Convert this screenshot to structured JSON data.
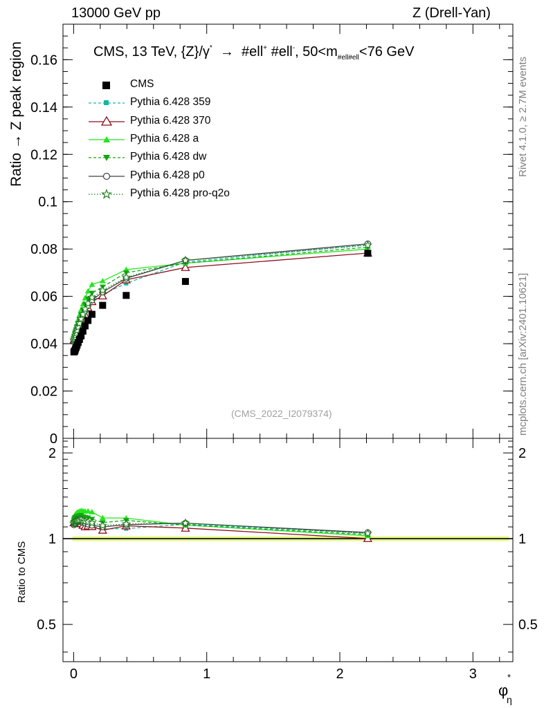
{
  "header": {
    "left": "13000 GeV pp",
    "right": "Z (Drell-Yan)"
  },
  "side_labels": {
    "rivet": "Rivet 4.1.0, ≥ 2.7M events",
    "mcplots": "mcplots.cern.ch [arXiv:2401.10621]"
  },
  "colors": {
    "CMS": "#000000",
    "p359": "#16b5a5",
    "p370": "#8b0f1c",
    "pa": "#22e81c",
    "pdw": "#14a514",
    "pp0": "#404040",
    "pq2o": "#1a7a1a",
    "band": "#e6f98c"
  },
  "chart_data": {
    "type": "line",
    "title": {
      "prefix": "CMS, 13 TeV, {Z}/γ",
      "star": "*",
      "arrow": "→",
      "l1": "#ell",
      "plus": "+",
      "l2": " #ell",
      "minus": "-",
      "mid": ", 50<m",
      "sub": "#ell#ell",
      "suffix": "<76 GeV"
    },
    "ylabel": "Ratio → Z peak region",
    "xlabel": "φ",
    "xlabel_sup": "*",
    "xlabel_sub": "η",
    "ratio_ylabel": "Ratio to CMS",
    "watermark": "(CMS_2022_I2079374)",
    "xlim": [
      -0.08,
      3.3
    ],
    "ylim": [
      0,
      0.175
    ],
    "ratio_ylim": [
      0.37,
      2.25
    ],
    "x_ticks": [
      0,
      1,
      2,
      3
    ],
    "y_ticks": [
      0,
      0.02,
      0.04,
      0.06,
      0.08,
      0.1,
      0.12,
      0.14,
      0.16
    ],
    "ratio_ticks": [
      0.5,
      1,
      2
    ],
    "x": [
      0.002,
      0.006,
      0.01,
      0.014,
      0.02,
      0.026,
      0.034,
      0.044,
      0.056,
      0.07,
      0.086,
      0.108,
      0.138,
      0.218,
      0.395,
      0.84,
      2.21
    ],
    "series": [
      {
        "name": "CMS",
        "key": "CMS",
        "style": "data",
        "values": [
          0.0365,
          0.0367,
          0.0371,
          0.0378,
          0.0385,
          0.0394,
          0.0405,
          0.0418,
          0.0433,
          0.0453,
          0.0475,
          0.0498,
          0.0524,
          0.0562,
          0.0604,
          0.0663,
          0.0782
        ]
      },
      {
        "name": "Pythia 6.428 359",
        "key": "p359",
        "style": "dashed",
        "marker": "square",
        "values": [
          0.0422,
          0.0427,
          0.0432,
          0.0438,
          0.0446,
          0.0456,
          0.0468,
          0.0483,
          0.0503,
          0.0519,
          0.0536,
          0.0556,
          0.0578,
          0.0608,
          0.0655,
          0.0745,
          0.0818
        ]
      },
      {
        "name": "Pythia 6.428 370",
        "key": "p370",
        "style": "solid",
        "marker": "triangle-open",
        "values": [
          0.0415,
          0.0419,
          0.0424,
          0.043,
          0.0437,
          0.0446,
          0.0457,
          0.0472,
          0.049,
          0.0505,
          0.0523,
          0.0552,
          0.0578,
          0.0602,
          0.067,
          0.0722,
          0.0783
        ]
      },
      {
        "name": "Pythia 6.428 a",
        "key": "pa",
        "style": "solid",
        "marker": "triangle",
        "values": [
          0.0432,
          0.044,
          0.0449,
          0.046,
          0.0472,
          0.0486,
          0.0502,
          0.0521,
          0.0543,
          0.0567,
          0.0593,
          0.0622,
          0.065,
          0.0665,
          0.0713,
          0.074,
          0.08
        ]
      },
      {
        "name": "Pythia 6.428 dw",
        "key": "pdw",
        "style": "dashed",
        "marker": "triangle-down",
        "values": [
          0.0425,
          0.0432,
          0.044,
          0.0449,
          0.046,
          0.0472,
          0.0486,
          0.0503,
          0.0523,
          0.0542,
          0.0565,
          0.059,
          0.0614,
          0.064,
          0.07,
          0.074,
          0.0808
        ]
      },
      {
        "name": "Pythia 6.428 p0",
        "key": "pp0",
        "style": "solid",
        "marker": "circle-open",
        "values": [
          0.0408,
          0.0414,
          0.0421,
          0.043,
          0.044,
          0.0451,
          0.0464,
          0.048,
          0.0498,
          0.0516,
          0.0538,
          0.056,
          0.0584,
          0.0618,
          0.0676,
          0.0752,
          0.0822
        ]
      },
      {
        "name": "Pythia 6.428 pro-q2o",
        "key": "pq2o",
        "style": "dotted",
        "marker": "star-open",
        "values": [
          0.0413,
          0.0419,
          0.0426,
          0.0435,
          0.0445,
          0.0456,
          0.047,
          0.0486,
          0.0505,
          0.0524,
          0.0546,
          0.057,
          0.0595,
          0.0625,
          0.068,
          0.0752,
          0.0816
        ]
      }
    ]
  }
}
